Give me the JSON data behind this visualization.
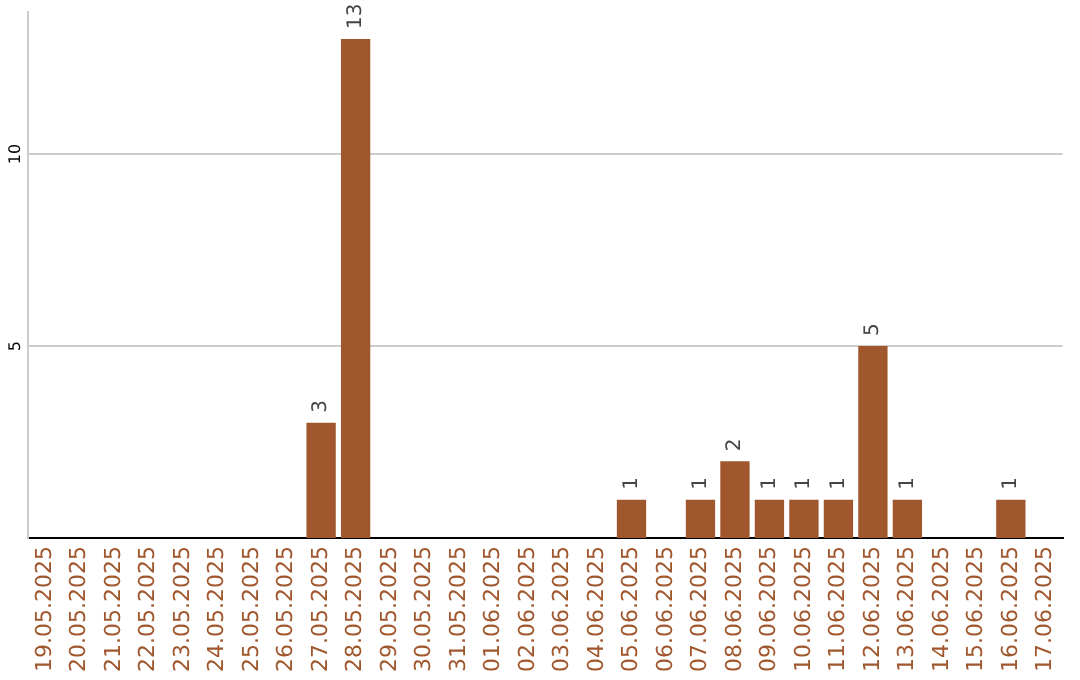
{
  "chart_data": {
    "type": "bar",
    "categories": [
      "19.05.2025",
      "20.05.2025",
      "21.05.2025",
      "22.05.2025",
      "23.05.2025",
      "24.05.2025",
      "25.05.2025",
      "26.05.2025",
      "27.05.2025",
      "28.05.2025",
      "29.05.2025",
      "30.05.2025",
      "31.05.2025",
      "01.06.2025",
      "02.06.2025",
      "03.06.2025",
      "04.06.2025",
      "05.06.2025",
      "06.06.2025",
      "07.06.2025",
      "08.06.2025",
      "09.06.2025",
      "10.06.2025",
      "11.06.2025",
      "12.06.2025",
      "13.06.2025",
      "14.06.2025",
      "15.06.2025",
      "16.06.2025",
      "17.06.2025"
    ],
    "values": [
      null,
      null,
      null,
      null,
      null,
      null,
      null,
      null,
      3,
      13,
      null,
      null,
      null,
      null,
      null,
      null,
      null,
      1,
      null,
      1,
      2,
      1,
      1,
      1,
      5,
      1,
      null,
      null,
      1,
      null
    ],
    "color": "#a0572d",
    "ylim": [
      0,
      13.7
    ],
    "yticks": [
      5,
      10
    ],
    "grid": "y",
    "data_labels": true,
    "legend": false
  }
}
